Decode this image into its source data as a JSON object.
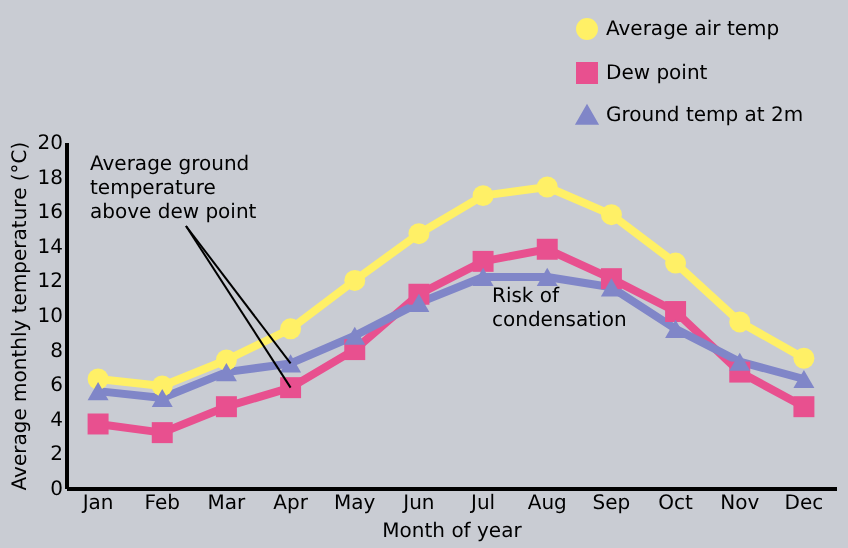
{
  "chart_data": {
    "type": "line",
    "xlabel": "Month of year",
    "ylabel": "Average monthly temperature (°C)",
    "categories": [
      "Jan",
      "Feb",
      "Mar",
      "Apr",
      "May",
      "Jun",
      "Jul",
      "Aug",
      "Sep",
      "Oct",
      "Nov",
      "Dec"
    ],
    "series": [
      {
        "name": "Average air temp",
        "color": "#fff066",
        "marker": "circle",
        "values": [
          6.3,
          5.9,
          7.4,
          9.2,
          12.0,
          14.7,
          16.9,
          17.4,
          15.8,
          13.0,
          9.6,
          7.5
        ]
      },
      {
        "name": "Dew point",
        "color": "#e8508f",
        "marker": "square",
        "values": [
          3.7,
          3.2,
          4.7,
          5.8,
          8.0,
          11.2,
          13.1,
          13.8,
          12.1,
          10.2,
          6.7,
          4.7
        ]
      },
      {
        "name": "Ground temp at 2m",
        "color": "#8086c8",
        "marker": "triangle",
        "values": [
          5.6,
          5.2,
          6.7,
          7.2,
          8.8,
          10.7,
          12.2,
          12.2,
          11.6,
          9.2,
          7.3,
          6.3
        ]
      }
    ],
    "ylim": [
      0,
      20
    ],
    "yticks": [
      0,
      2,
      4,
      6,
      8,
      10,
      12,
      14,
      16,
      18,
      20
    ],
    "grid": false,
    "legend": "top right",
    "line_style": "solid",
    "annotations": [
      {
        "text": "Average ground temperature above dew point",
        "x": "Apr",
        "y": 7.2
      },
      "Risk of condensation"
    ]
  }
}
